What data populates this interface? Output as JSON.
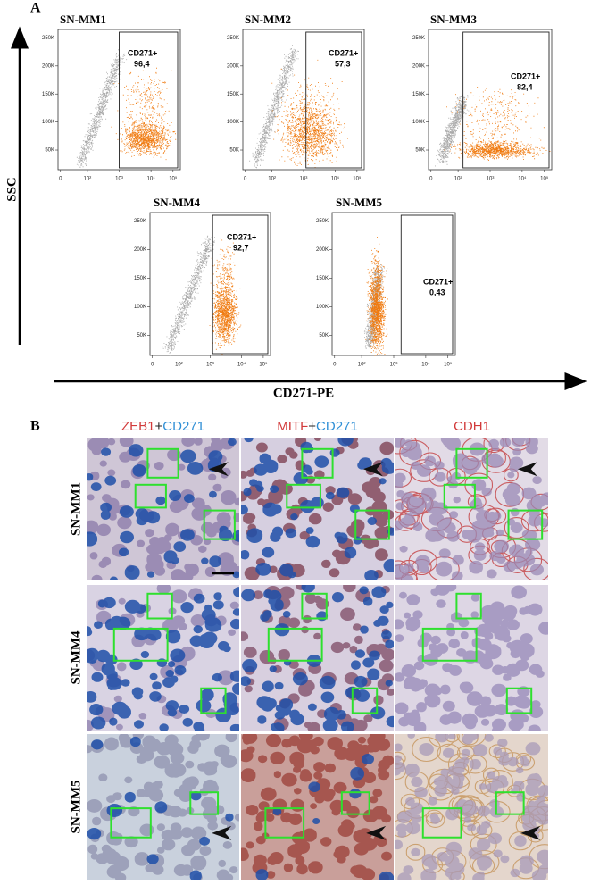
{
  "panel_a": {
    "label": "A",
    "y_axis_label": "SSC",
    "x_axis_label": "CD271-PE",
    "yticks": [
      "250K",
      "200K",
      "150K",
      "100K",
      "50K"
    ],
    "xticks": [
      "0",
      "10²",
      "10³",
      "10⁴",
      "10⁵"
    ],
    "plots": [
      {
        "title": "SN-MM1",
        "gate_label": "CD271+",
        "gate_value": "96,4"
      },
      {
        "title": "SN-MM2",
        "gate_label": "CD271+",
        "gate_value": "57,3"
      },
      {
        "title": "SN-MM3",
        "gate_label": "CD271+",
        "gate_value": "82,4"
      },
      {
        "title": "SN-MM4",
        "gate_label": "CD271+",
        "gate_value": "92,7"
      },
      {
        "title": "SN-MM5",
        "gate_label": "CD271+",
        "gate_value": "0,43"
      }
    ]
  },
  "panel_b": {
    "label": "B",
    "columns": [
      {
        "parts": [
          "ZEB1",
          "+",
          "CD271"
        ]
      },
      {
        "parts": [
          "MITF",
          "+",
          "CD271"
        ]
      },
      {
        "parts": [
          "CDH1"
        ]
      }
    ],
    "rows": [
      "SN-MM1",
      "SN-MM4",
      "SN-MM5"
    ]
  }
}
